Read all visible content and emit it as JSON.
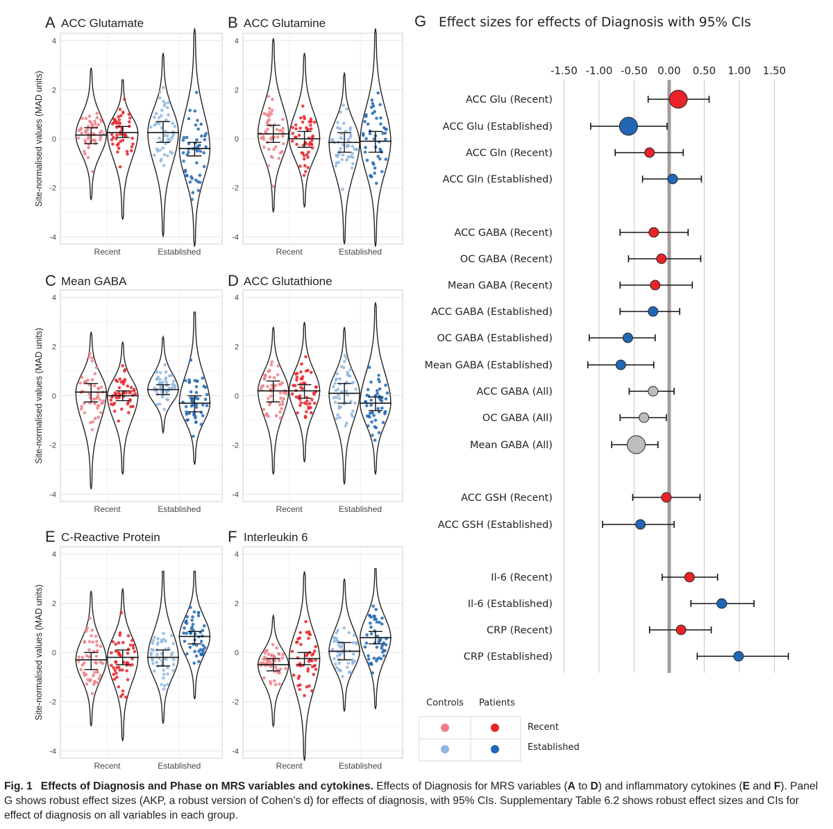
{
  "chart_data": [
    {
      "type": "violin",
      "panel_letter": "A",
      "title": "ACC Glutamate",
      "ylabel": "Site-normalised values (MAD units)",
      "ylim": [
        -4.3,
        4.3
      ],
      "yticks": [
        -4,
        -2,
        0,
        2,
        4
      ],
      "categories": [
        "Recent",
        "Established"
      ],
      "groups": [
        {
          "phase": "Recent",
          "group": "Controls",
          "median": 0.15,
          "ci": [
            -0.2,
            0.45
          ],
          "range": [
            -2.5,
            2.9
          ]
        },
        {
          "phase": "Recent",
          "group": "Patients",
          "median": 0.25,
          "ci": [
            0.05,
            0.5
          ],
          "range": [
            -3.3,
            2.4
          ]
        },
        {
          "phase": "Established",
          "group": "Controls",
          "median": 0.25,
          "ci": [
            -0.15,
            0.7
          ],
          "range": [
            -4.0,
            3.5
          ]
        },
        {
          "phase": "Established",
          "group": "Patients",
          "median": -0.4,
          "ci": [
            -0.7,
            -0.15
          ],
          "range": [
            -4.4,
            4.5
          ]
        }
      ]
    },
    {
      "type": "violin",
      "panel_letter": "B",
      "title": "ACC Glutamine",
      "ylabel": "",
      "ylim": [
        -4.3,
        4.3
      ],
      "yticks": [
        -4,
        -2,
        0,
        2,
        4
      ],
      "categories": [
        "Recent",
        "Established"
      ],
      "groups": [
        {
          "phase": "Recent",
          "group": "Controls",
          "median": 0.2,
          "ci": [
            -0.15,
            0.55
          ],
          "range": [
            -3.0,
            4.1
          ]
        },
        {
          "phase": "Recent",
          "group": "Patients",
          "median": 0.0,
          "ci": [
            -0.35,
            0.3
          ],
          "range": [
            -2.8,
            3.5
          ]
        },
        {
          "phase": "Established",
          "group": "Controls",
          "median": -0.15,
          "ci": [
            -0.55,
            0.25
          ],
          "range": [
            -4.3,
            2.7
          ]
        },
        {
          "phase": "Established",
          "group": "Patients",
          "median": -0.1,
          "ci": [
            -0.55,
            0.3
          ],
          "range": [
            -4.4,
            4.5
          ]
        }
      ]
    },
    {
      "type": "violin",
      "panel_letter": "C",
      "title": "Mean GABA",
      "ylabel": "Site-normalised values (MAD units)",
      "ylim": [
        -4.3,
        4.3
      ],
      "yticks": [
        -4,
        -2,
        0,
        2,
        4
      ],
      "categories": [
        "Recent",
        "Established"
      ],
      "groups": [
        {
          "phase": "Recent",
          "group": "Controls",
          "median": 0.15,
          "ci": [
            -0.25,
            0.5
          ],
          "range": [
            -3.8,
            2.6
          ]
        },
        {
          "phase": "Recent",
          "group": "Patients",
          "median": 0.0,
          "ci": [
            -0.2,
            0.2
          ],
          "range": [
            -3.2,
            2.2
          ]
        },
        {
          "phase": "Established",
          "group": "Controls",
          "median": 0.25,
          "ci": [
            0.05,
            0.45
          ],
          "range": [
            -1.5,
            2.4
          ]
        },
        {
          "phase": "Established",
          "group": "Patients",
          "median": -0.3,
          "ci": [
            -0.65,
            0.0
          ],
          "range": [
            -2.8,
            3.4
          ]
        }
      ]
    },
    {
      "type": "violin",
      "panel_letter": "D",
      "title": "ACC Glutathione",
      "ylabel": "",
      "ylim": [
        -4.3,
        4.3
      ],
      "yticks": [
        -4,
        -2,
        0,
        2,
        4
      ],
      "categories": [
        "Recent",
        "Established"
      ],
      "groups": [
        {
          "phase": "Recent",
          "group": "Controls",
          "median": 0.2,
          "ci": [
            -0.25,
            0.6
          ],
          "range": [
            -3.2,
            2.8
          ]
        },
        {
          "phase": "Recent",
          "group": "Patients",
          "median": 0.2,
          "ci": [
            -0.1,
            0.45
          ],
          "range": [
            -2.7,
            3.0
          ]
        },
        {
          "phase": "Established",
          "group": "Controls",
          "median": 0.1,
          "ci": [
            -0.3,
            0.5
          ],
          "range": [
            -3.6,
            2.8
          ]
        },
        {
          "phase": "Established",
          "group": "Patients",
          "median": -0.3,
          "ci": [
            -0.6,
            -0.05
          ],
          "range": [
            -3.2,
            3.8
          ]
        }
      ]
    },
    {
      "type": "violin",
      "panel_letter": "E",
      "title": "C-Reactive Protein",
      "ylabel": "Site-normalised values (MAD units)",
      "ylim": [
        -4.3,
        4.3
      ],
      "yticks": [
        -4,
        -2,
        0,
        2,
        4
      ],
      "categories": [
        "Recent",
        "Established"
      ],
      "groups": [
        {
          "phase": "Recent",
          "group": "Controls",
          "median": -0.3,
          "ci": [
            -0.7,
            0.0
          ],
          "range": [
            -3.0,
            2.5
          ]
        },
        {
          "phase": "Recent",
          "group": "Patients",
          "median": -0.2,
          "ci": [
            -0.5,
            0.1
          ],
          "range": [
            -3.6,
            2.6
          ]
        },
        {
          "phase": "Established",
          "group": "Controls",
          "median": -0.2,
          "ci": [
            -0.55,
            0.1
          ],
          "range": [
            -2.9,
            3.3
          ]
        },
        {
          "phase": "Established",
          "group": "Patients",
          "median": 0.65,
          "ci": [
            0.35,
            0.85
          ],
          "range": [
            -1.9,
            3.3
          ]
        }
      ]
    },
    {
      "type": "violin",
      "panel_letter": "F",
      "title": "Interleukin 6",
      "ylabel": "",
      "ylim": [
        -4.3,
        4.3
      ],
      "yticks": [
        -4,
        -2,
        0,
        2,
        4
      ],
      "categories": [
        "Recent",
        "Established"
      ],
      "groups": [
        {
          "phase": "Recent",
          "group": "Controls",
          "median": -0.5,
          "ci": [
            -0.75,
            -0.25
          ],
          "range": [
            -3.0,
            1.5
          ]
        },
        {
          "phase": "Recent",
          "group": "Patients",
          "median": -0.25,
          "ci": [
            -0.5,
            0.0
          ],
          "range": [
            -4.4,
            3.3
          ]
        },
        {
          "phase": "Established",
          "group": "Controls",
          "median": 0.05,
          "ci": [
            -0.3,
            0.4
          ],
          "range": [
            -2.4,
            3.0
          ]
        },
        {
          "phase": "Established",
          "group": "Patients",
          "median": 0.6,
          "ci": [
            0.35,
            0.85
          ],
          "range": [
            -2.3,
            3.4
          ]
        }
      ]
    },
    {
      "type": "forest",
      "panel_letter": "G",
      "title": "Effect sizes for effects of Diagnosis with 95% CIs",
      "xticks": [
        -1.5,
        -1.0,
        -0.5,
        0.0,
        0.5,
        1.0,
        1.5
      ],
      "xtick_labels": [
        "-1.50",
        "-1.00",
        "-0.50",
        "0.00",
        "0.50",
        "1.00",
        "1.50"
      ],
      "xlim": [
        -1.75,
        1.75
      ],
      "rows": [
        {
          "label": "ACC Glu (Recent)",
          "d": 0.13,
          "ci": [
            -0.3,
            0.57
          ],
          "group": "Recent",
          "size": "large"
        },
        {
          "label": "ACC Glu (Established)",
          "d": -0.58,
          "ci": [
            -1.12,
            -0.03
          ],
          "group": "Established",
          "size": "large"
        },
        {
          "label": "ACC Gln (Recent)",
          "d": -0.28,
          "ci": [
            -0.77,
            0.2
          ],
          "group": "Recent",
          "size": "small"
        },
        {
          "label": "ACC Gln (Established)",
          "d": 0.05,
          "ci": [
            -0.38,
            0.46
          ],
          "group": "Established",
          "size": "small"
        },
        {
          "label": "ACC GABA (Recent)",
          "d": -0.22,
          "ci": [
            -0.7,
            0.27
          ],
          "group": "Recent",
          "size": "small"
        },
        {
          "label": "OC GABA (Recent)",
          "d": -0.11,
          "ci": [
            -0.58,
            0.45
          ],
          "group": "Recent",
          "size": "small"
        },
        {
          "label": "Mean GABA (Recent)",
          "d": -0.2,
          "ci": [
            -0.7,
            0.33
          ],
          "group": "Recent",
          "size": "small"
        },
        {
          "label": "ACC GABA (Established)",
          "d": -0.23,
          "ci": [
            -0.7,
            0.15
          ],
          "group": "Established",
          "size": "small"
        },
        {
          "label": "OC GABA (Established)",
          "d": -0.59,
          "ci": [
            -1.14,
            -0.2
          ],
          "group": "Established",
          "size": "small"
        },
        {
          "label": "Mean GABA (Established)",
          "d": -0.69,
          "ci": [
            -1.16,
            -0.22
          ],
          "group": "Established",
          "size": "small"
        },
        {
          "label": "ACC GABA (All)",
          "d": -0.23,
          "ci": [
            -0.57,
            0.07
          ],
          "group": "All",
          "size": "small"
        },
        {
          "label": "OC GABA (All)",
          "d": -0.36,
          "ci": [
            -0.7,
            -0.04
          ],
          "group": "All",
          "size": "small"
        },
        {
          "label": "Mean GABA (All)",
          "d": -0.47,
          "ci": [
            -0.82,
            -0.16
          ],
          "group": "All",
          "size": "large"
        },
        {
          "label": "ACC GSH (Recent)",
          "d": -0.04,
          "ci": [
            -0.52,
            0.44
          ],
          "group": "Recent",
          "size": "small"
        },
        {
          "label": "ACC GSH (Established)",
          "d": -0.41,
          "ci": [
            -0.95,
            0.07
          ],
          "group": "Established",
          "size": "small"
        },
        {
          "label": "Il-6 (Recent)",
          "d": 0.29,
          "ci": [
            -0.1,
            0.69
          ],
          "group": "Recent",
          "size": "small"
        },
        {
          "label": "Il-6 (Established)",
          "d": 0.75,
          "ci": [
            0.31,
            1.21
          ],
          "group": "Established",
          "size": "small"
        },
        {
          "label": "CRP (Recent)",
          "d": 0.17,
          "ci": [
            -0.28,
            0.6
          ],
          "group": "Recent",
          "size": "small"
        },
        {
          "label": "CRP (Established)",
          "d": 0.99,
          "ci": [
            0.4,
            1.7
          ],
          "group": "Established",
          "size": "small"
        }
      ]
    }
  ],
  "legend": {
    "col_controls": "Controls",
    "col_patients": "Patients",
    "row_recent": "Recent",
    "row_established": "Established"
  },
  "colors": {
    "recent_controls": "#ef7f85",
    "recent_patients": "#e8232a",
    "established_controls": "#8fb7e0",
    "established_patients": "#2167b5",
    "all": "#bdbdbd",
    "zero_line": "#a69c9c"
  },
  "caption": {
    "label": "Fig. 1",
    "bold_title": "Effects of Diagnosis and Phase on MRS variables and cytokines.",
    "text_1": " Effects of Diagnosis for MRS variables (",
    "ref_a": "A",
    "text_2": " to ",
    "ref_d": "D",
    "text_3": ") and inflammatory cytokines (",
    "ref_e": "E",
    "text_4": " and ",
    "ref_f": "F",
    "text_5": "). Panel G shows robust effect sizes (AKP, a robust version of Cohen’s d) for effects of diagnosis, with 95% CIs. Supplementary Table 6.2 shows robust effect sizes and CIs for effect of diagnosis on all variables in each group."
  }
}
